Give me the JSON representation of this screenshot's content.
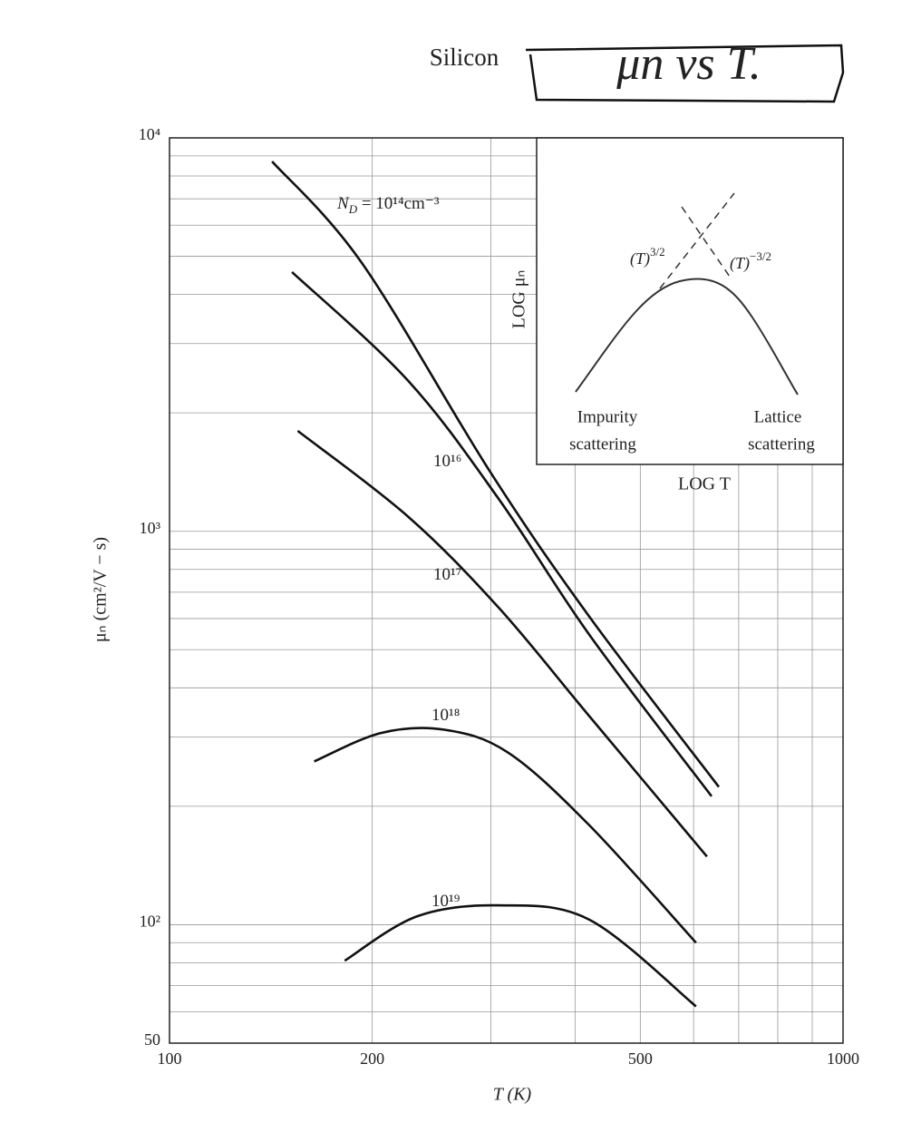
{
  "chart_data": {
    "type": "line",
    "title": "Silicon",
    "annotation": "μn vs T.",
    "xlabel": "T (K)",
    "ylabel": "μₙ (cm²/V − s)",
    "log_x": true,
    "log_y": true,
    "grid": true,
    "xlim": [
      100,
      1000
    ],
    "ylim": [
      50,
      10000
    ],
    "xticks": [
      100,
      200,
      500,
      1000
    ],
    "x_minor_ticks": [
      300,
      400,
      600,
      700,
      800,
      900
    ],
    "yticks": [
      {
        "value": 50,
        "label": "50"
      },
      {
        "value": 100,
        "label": "10²"
      },
      {
        "value": 1000,
        "label": "10³"
      },
      {
        "value": 10000,
        "label": "10⁴"
      }
    ],
    "y_minor_ticks": [
      60,
      70,
      80,
      90,
      200,
      300,
      400,
      500,
      600,
      700,
      800,
      900,
      2000,
      3000,
      4000,
      5000,
      6000,
      7000,
      8000,
      9000
    ],
    "series": [
      {
        "name": "N",
        "name_sub": "D",
        "name_rest": " = 10¹⁴cm⁻³",
        "color": "#111111",
        "x": [
          142,
          193,
          299,
          420,
          654
        ],
        "values": [
          8710,
          4810,
          1420,
          607,
          224
        ]
      },
      {
        "name": "10¹⁶",
        "color": "#111111",
        "x": [
          152,
          226,
          308,
          420,
          638
        ],
        "values": [
          4560,
          2415,
          1210,
          546,
          212
        ]
      },
      {
        "name": "10¹⁷",
        "color": "#111111",
        "x": [
          155,
          226,
          308,
          420,
          628
        ],
        "values": [
          1800,
          1090,
          640,
          339,
          149
        ]
      },
      {
        "name": "10¹⁸",
        "color": "#111111",
        "x": [
          164,
          206,
          256,
          318,
          420,
          605
        ],
        "values": [
          260,
          307,
          313,
          274,
          179,
          90
        ]
      },
      {
        "name": "10¹⁹",
        "color": "#111111",
        "x": [
          182,
          233,
          308,
          420,
          605
        ],
        "values": [
          81,
          105,
          112,
          103,
          62
        ]
      }
    ],
    "inset": {
      "ylabel": "LOG μₙ",
      "xlabel": "LOG T",
      "left_slope": [
        "(T)",
        "3/2"
      ],
      "right_slope": [
        "(T)",
        "−3/2"
      ],
      "left_caption": [
        "Impurity",
        "scattering"
      ],
      "right_caption": [
        "Lattice",
        "scattering"
      ]
    }
  }
}
